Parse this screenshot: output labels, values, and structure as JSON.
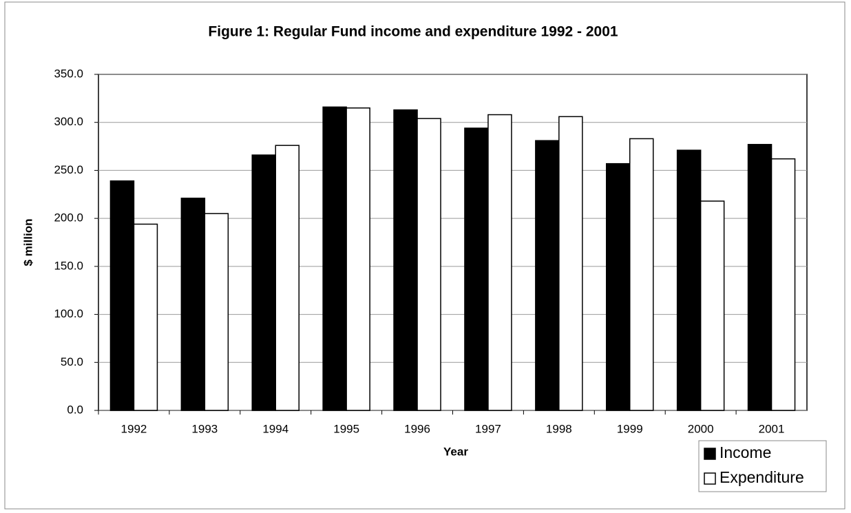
{
  "chart_data": {
    "type": "bar",
    "title": "Figure 1: Regular Fund income and expenditure 1992 - 2001",
    "x_label": "Year",
    "y_label": "$ million",
    "categories": [
      "1992",
      "1993",
      "1994",
      "1995",
      "1996",
      "1997",
      "1998",
      "1999",
      "2000",
      "2001"
    ],
    "series": [
      {
        "name": "Income",
        "color": "#000000",
        "values": [
          239,
          221,
          266,
          316,
          313,
          294,
          281,
          257,
          271,
          277
        ]
      },
      {
        "name": "Expenditure",
        "color": "#ffffff",
        "values": [
          194,
          205,
          276,
          315,
          304,
          308,
          306,
          283,
          218,
          262
        ]
      }
    ],
    "ylim": [
      0,
      350
    ],
    "yticks": [
      {
        "value": 0,
        "label": "0.0"
      },
      {
        "value": 50,
        "label": "50.0"
      },
      {
        "value": 100,
        "label": "100.0"
      },
      {
        "value": 150,
        "label": "150.0"
      },
      {
        "value": 200,
        "label": "200.0"
      },
      {
        "value": 250,
        "label": "250.0"
      },
      {
        "value": 300,
        "label": "300.0"
      },
      {
        "value": 350,
        "label": "350.0"
      }
    ],
    "grid": true,
    "legend": "bottom-right"
  }
}
